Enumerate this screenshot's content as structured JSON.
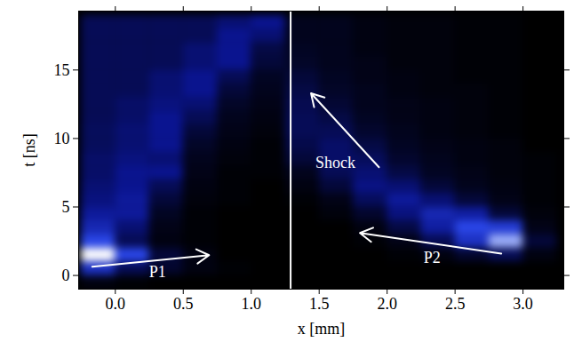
{
  "chart_data": {
    "type": "heatmap",
    "x_label": "x [mm]",
    "y_label": "t [ns]",
    "xlim": [
      -0.27,
      3.3
    ],
    "ylim": [
      -1,
      19.3
    ],
    "xticks": [
      {
        "value": 0,
        "label": "0.0"
      },
      0.5,
      {
        "value": 1,
        "label": "1.0"
      },
      1.5,
      {
        "value": 2,
        "label": "2.0"
      },
      2.5,
      {
        "value": 3,
        "label": "3.0"
      }
    ],
    "yticks": [
      0,
      5,
      10,
      15
    ],
    "x_edges": [
      -0.25,
      0,
      0.25,
      0.5,
      0.75,
      1,
      1.25,
      1.5,
      1.75,
      2,
      2.25,
      2.5,
      2.75,
      3,
      3.25
    ],
    "y_edges": [
      -1,
      0,
      1,
      2,
      3,
      4,
      5,
      6,
      7,
      8,
      9,
      10,
      11,
      12,
      13,
      14,
      15,
      16,
      17,
      18,
      19
    ],
    "cells": [
      [
        0.3,
        0.1,
        0,
        0,
        0,
        0,
        0,
        0,
        0,
        0,
        0,
        0,
        0,
        0
      ],
      [
        4,
        1.5,
        0.8,
        0.3,
        0.1,
        0,
        0,
        0,
        0,
        0,
        0,
        0,
        0,
        0
      ],
      [
        10,
        5,
        1,
        0.3,
        0,
        0,
        0,
        0,
        0,
        0.1,
        0.3,
        0.8,
        1.5,
        0.3
      ],
      [
        5,
        1.5,
        0.3,
        0.1,
        0,
        0,
        0,
        0,
        0.1,
        0.4,
        1.5,
        4,
        7,
        1
      ],
      [
        3.5,
        2,
        0.4,
        0.1,
        0,
        0,
        0,
        0,
        0.3,
        1.2,
        3,
        5,
        4.5,
        0.4
      ],
      [
        2.8,
        2.8,
        0.6,
        0.1,
        0,
        0,
        0,
        0.2,
        0.8,
        2.2,
        3.5,
        3,
        1,
        0.2
      ],
      [
        2.2,
        2.8,
        1,
        0.2,
        0.1,
        0,
        0.1,
        0.4,
        1.6,
        2.8,
        2,
        1,
        0.4,
        0.1
      ],
      [
        2,
        2.5,
        1.5,
        0.3,
        0.1,
        0,
        0.3,
        1,
        2.3,
        2,
        1,
        0.5,
        0.3,
        0.1
      ],
      [
        1.8,
        2.5,
        2.5,
        0.4,
        0.1,
        0.1,
        0.5,
        1.5,
        2,
        1.2,
        0.6,
        0.4,
        0.2,
        0.1
      ],
      [
        1.8,
        2.2,
        2,
        0.5,
        0.2,
        0.1,
        1,
        1.8,
        1.6,
        0.8,
        0.5,
        0.3,
        0.2,
        0.1
      ],
      [
        1.6,
        2,
        2.5,
        0.7,
        0.3,
        0.1,
        1.3,
        1.8,
        1.2,
        0.6,
        0.4,
        0.3,
        0.2,
        0
      ],
      [
        1.6,
        2,
        2.5,
        1,
        0.4,
        0.2,
        1.5,
        1.5,
        0.8,
        0.5,
        0.3,
        0.2,
        0.1,
        0
      ],
      [
        1.5,
        1.8,
        2.5,
        1.5,
        0.5,
        0.3,
        1.5,
        1.2,
        0.6,
        0.4,
        0.3,
        0.2,
        0.1,
        0
      ],
      [
        1.5,
        1.8,
        2.2,
        2,
        0.7,
        0.4,
        1.4,
        0.9,
        0.5,
        0.4,
        0.3,
        0.2,
        0.1,
        0
      ],
      [
        1.5,
        1.5,
        2,
        2.5,
        1,
        0.5,
        1.2,
        0.7,
        0.5,
        0.3,
        0.2,
        0.2,
        0.1,
        0
      ],
      [
        1.5,
        1.5,
        2,
        2.5,
        1.5,
        0.6,
        1,
        0.6,
        0.4,
        0.3,
        0.2,
        0.1,
        0.1,
        0
      ],
      [
        1.5,
        1.5,
        1.5,
        2,
        2.5,
        1,
        0.7,
        0.5,
        0.4,
        0.2,
        0.2,
        0.1,
        0.1,
        0
      ],
      [
        1.5,
        1.5,
        1.5,
        2,
        2.5,
        1.2,
        0.6,
        0.5,
        0.3,
        0.2,
        0.2,
        0.1,
        0.1,
        0
      ],
      [
        1.5,
        1.5,
        1.5,
        1.5,
        2.5,
        2,
        0.5,
        0.5,
        0.3,
        0.2,
        0.2,
        0.1,
        0.1,
        0
      ],
      [
        1.5,
        1.5,
        1.5,
        1.5,
        2,
        2.5,
        0.5,
        0.5,
        0.3,
        0.2,
        0.2,
        0.1,
        0.1,
        0
      ]
    ],
    "intensity_range": [
      0,
      10
    ],
    "colormap": [
      "#000000",
      "#0a1490",
      "#2a46e8",
      "#b8c8ff",
      "#ffffff"
    ],
    "divider": {
      "x": 1.29,
      "color": "#ffffff"
    },
    "annotations": [
      {
        "text": "P1",
        "x": 0.31,
        "y": 0.26,
        "color": "#ffffff",
        "arrow": {
          "x1": -0.17,
          "y1": 0.64,
          "x2": 0.69,
          "y2": 1.48
        }
      },
      {
        "text": "P2",
        "x": 2.33,
        "y": 1.29,
        "color": "#ffffff",
        "arrow": {
          "x1": 2.84,
          "y1": 1.6,
          "x2": 1.8,
          "y2": 3.1
        }
      },
      {
        "text": "Shock",
        "x": 1.62,
        "y": 8.2,
        "color": "#ffffff",
        "arrow": {
          "x1": 1.94,
          "y1": 7.9,
          "x2": 1.44,
          "y2": 13.3
        }
      }
    ]
  }
}
